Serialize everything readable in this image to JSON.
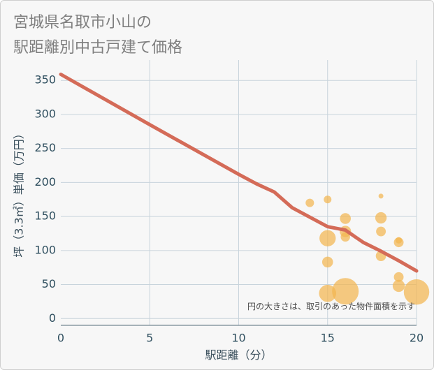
{
  "title_lines": [
    "宮城県名取市小山の",
    "駅距離別中古戸建て価格"
  ],
  "chart_data": {
    "type": "scatter",
    "title": "宮城県名取市小山の駅距離別中古戸建て価格",
    "xlabel": "駅距離（分）",
    "ylabel": "坪（3.3㎡）単価（万円）",
    "xlim": [
      0,
      20
    ],
    "ylim": [
      -10,
      380
    ],
    "xticks": [
      0,
      5,
      10,
      15,
      20
    ],
    "yticks": [
      0,
      50,
      100,
      150,
      200,
      250,
      300,
      350
    ],
    "grid": true,
    "note": "円の大きさは、取引のあった物件面積を示す",
    "colors": {
      "line": "#d46b58",
      "bubble": "#f3b650",
      "grid": "#c8d4dc",
      "axis": "#8a9aa4"
    },
    "trend_line": {
      "x": [
        0,
        5,
        10,
        11,
        12,
        13,
        14,
        15,
        16,
        17,
        18,
        19,
        20
      ],
      "y": [
        359,
        285,
        212,
        198,
        186,
        163,
        149,
        135,
        130,
        112,
        99,
        85,
        70
      ]
    },
    "bubbles": [
      {
        "x": 14,
        "y": 170,
        "size": 1.2
      },
      {
        "x": 15,
        "y": 175,
        "size": 1.0
      },
      {
        "x": 15,
        "y": 118,
        "size": 4.5
      },
      {
        "x": 15,
        "y": 83,
        "size": 2.0
      },
      {
        "x": 15,
        "y": 37,
        "size": 5.0
      },
      {
        "x": 16,
        "y": 147,
        "size": 2.0
      },
      {
        "x": 16,
        "y": 128,
        "size": 2.2
      },
      {
        "x": 16,
        "y": 120,
        "size": 1.5
      },
      {
        "x": 16,
        "y": 40,
        "size": 12.0
      },
      {
        "x": 18,
        "y": 180,
        "size": 0.4
      },
      {
        "x": 18,
        "y": 148,
        "size": 2.2
      },
      {
        "x": 18,
        "y": 128,
        "size": 1.6
      },
      {
        "x": 18,
        "y": 92,
        "size": 1.8
      },
      {
        "x": 19,
        "y": 115,
        "size": 0.7
      },
      {
        "x": 19,
        "y": 112,
        "size": 1.6
      },
      {
        "x": 19,
        "y": 61,
        "size": 1.6
      },
      {
        "x": 19,
        "y": 48,
        "size": 2.5
      },
      {
        "x": 20,
        "y": 39,
        "size": 11.0
      }
    ]
  }
}
